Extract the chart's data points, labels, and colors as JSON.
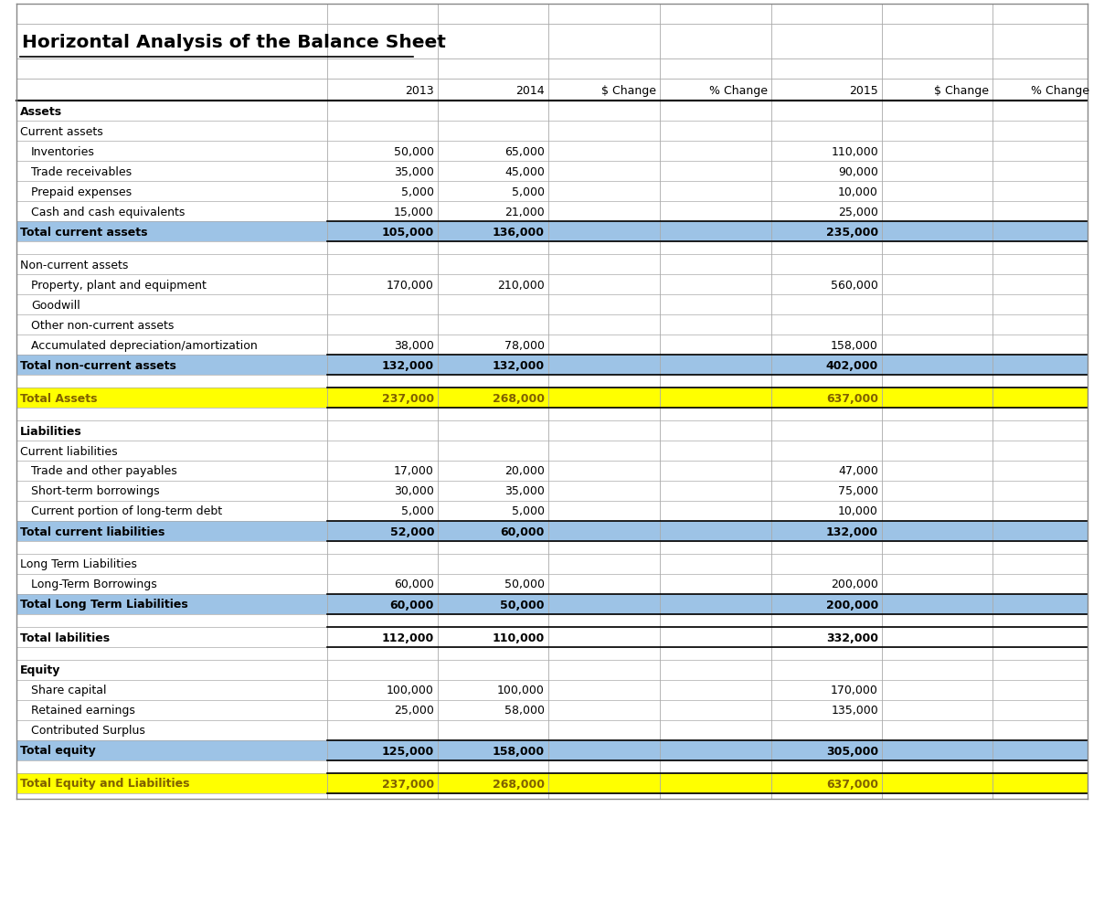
{
  "title": "Horizontal Analysis of the Balance Sheet",
  "col_headers": [
    "",
    "2013",
    "2014",
    "$ Change",
    "% Change",
    "2015",
    "$ Change",
    "% Change"
  ],
  "rows": [
    {
      "label": "Assets",
      "bold": true,
      "values": [
        "",
        "",
        "",
        "",
        "",
        "",
        ""
      ],
      "style": "header"
    },
    {
      "label": "Current assets",
      "bold": false,
      "values": [
        "",
        "",
        "",
        "",
        "",
        "",
        ""
      ],
      "style": "normal"
    },
    {
      "label": "  Inventories",
      "bold": false,
      "values": [
        "50,000",
        "65,000",
        "",
        "",
        "110,000",
        "",
        ""
      ],
      "style": "normal"
    },
    {
      "label": "  Trade receivables",
      "bold": false,
      "values": [
        "35,000",
        "45,000",
        "",
        "",
        "90,000",
        "",
        ""
      ],
      "style": "normal"
    },
    {
      "label": "  Prepaid expenses",
      "bold": false,
      "values": [
        "5,000",
        "5,000",
        "",
        "",
        "10,000",
        "",
        ""
      ],
      "style": "normal"
    },
    {
      "label": "  Cash and cash equivalents",
      "bold": false,
      "values": [
        "15,000",
        "21,000",
        "",
        "",
        "25,000",
        "",
        ""
      ],
      "style": "normal"
    },
    {
      "label": "Total current assets",
      "bold": true,
      "values": [
        "105,000",
        "136,000",
        "",
        "",
        "235,000",
        "",
        ""
      ],
      "style": "blue"
    },
    {
      "label": "",
      "bold": false,
      "values": [
        "",
        "",
        "",
        "",
        "",
        "",
        ""
      ],
      "style": "empty"
    },
    {
      "label": "Non-current assets",
      "bold": false,
      "values": [
        "",
        "",
        "",
        "",
        "",
        "",
        ""
      ],
      "style": "normal"
    },
    {
      "label": "  Property, plant and equipment",
      "bold": false,
      "values": [
        "170,000",
        "210,000",
        "",
        "",
        "560,000",
        "",
        ""
      ],
      "style": "normal"
    },
    {
      "label": "  Goodwill",
      "bold": false,
      "values": [
        "",
        "",
        "",
        "",
        "",
        "",
        ""
      ],
      "style": "normal"
    },
    {
      "label": "  Other non-current assets",
      "bold": false,
      "values": [
        "",
        "",
        "",
        "",
        "",
        "",
        ""
      ],
      "style": "normal"
    },
    {
      "label": "  Accumulated depreciation/amortization",
      "bold": false,
      "values": [
        "38,000",
        "78,000",
        "",
        "",
        "158,000",
        "",
        ""
      ],
      "style": "normal"
    },
    {
      "label": "Total non-current assets",
      "bold": true,
      "values": [
        "132,000",
        "132,000",
        "",
        "",
        "402,000",
        "",
        ""
      ],
      "style": "blue"
    },
    {
      "label": "",
      "bold": false,
      "values": [
        "",
        "",
        "",
        "",
        "",
        "",
        ""
      ],
      "style": "empty"
    },
    {
      "label": "Total Assets",
      "bold": true,
      "values": [
        "237,000",
        "268,000",
        "",
        "",
        "637,000",
        "",
        ""
      ],
      "style": "yellow"
    },
    {
      "label": "",
      "bold": false,
      "values": [
        "",
        "",
        "",
        "",
        "",
        "",
        ""
      ],
      "style": "empty"
    },
    {
      "label": "Liabilities",
      "bold": true,
      "values": [
        "",
        "",
        "",
        "",
        "",
        "",
        ""
      ],
      "style": "header"
    },
    {
      "label": "Current liabilities",
      "bold": false,
      "values": [
        "",
        "",
        "",
        "",
        "",
        "",
        ""
      ],
      "style": "normal"
    },
    {
      "label": "  Trade and other payables",
      "bold": false,
      "values": [
        "17,000",
        "20,000",
        "",
        "",
        "47,000",
        "",
        ""
      ],
      "style": "normal"
    },
    {
      "label": "  Short-term borrowings",
      "bold": false,
      "values": [
        "30,000",
        "35,000",
        "",
        "",
        "75,000",
        "",
        ""
      ],
      "style": "normal"
    },
    {
      "label": "  Current portion of long-term debt",
      "bold": false,
      "values": [
        "5,000",
        "5,000",
        "",
        "",
        "10,000",
        "",
        ""
      ],
      "style": "normal"
    },
    {
      "label": "Total current liabilities",
      "bold": true,
      "values": [
        "52,000",
        "60,000",
        "",
        "",
        "132,000",
        "",
        ""
      ],
      "style": "blue"
    },
    {
      "label": "",
      "bold": false,
      "values": [
        "",
        "",
        "",
        "",
        "",
        "",
        ""
      ],
      "style": "empty"
    },
    {
      "label": "Long Term Liabilities",
      "bold": false,
      "values": [
        "",
        "",
        "",
        "",
        "",
        "",
        ""
      ],
      "style": "normal"
    },
    {
      "label": "  Long-Term Borrowings",
      "bold": false,
      "values": [
        "60,000",
        "50,000",
        "",
        "",
        "200,000",
        "",
        ""
      ],
      "style": "normal"
    },
    {
      "label": "Total Long Term Liabilities",
      "bold": true,
      "values": [
        "60,000",
        "50,000",
        "",
        "",
        "200,000",
        "",
        ""
      ],
      "style": "blue"
    },
    {
      "label": "",
      "bold": false,
      "values": [
        "",
        "",
        "",
        "",
        "",
        "",
        ""
      ],
      "style": "empty"
    },
    {
      "label": "Total labilities",
      "bold": true,
      "values": [
        "112,000",
        "110,000",
        "",
        "",
        "332,000",
        "",
        ""
      ],
      "style": "bold_normal"
    },
    {
      "label": "",
      "bold": false,
      "values": [
        "",
        "",
        "",
        "",
        "",
        "",
        ""
      ],
      "style": "empty"
    },
    {
      "label": "Equity",
      "bold": true,
      "values": [
        "",
        "",
        "",
        "",
        "",
        "",
        ""
      ],
      "style": "header"
    },
    {
      "label": "  Share capital",
      "bold": false,
      "values": [
        "100,000",
        "100,000",
        "",
        "",
        "170,000",
        "",
        ""
      ],
      "style": "normal"
    },
    {
      "label": "  Retained earnings",
      "bold": false,
      "values": [
        "25,000",
        "58,000",
        "",
        "",
        "135,000",
        "",
        ""
      ],
      "style": "normal"
    },
    {
      "label": "  Contributed Surplus",
      "bold": false,
      "values": [
        "",
        "",
        "",
        "",
        "",
        "",
        ""
      ],
      "style": "normal"
    },
    {
      "label": "Total equity",
      "bold": true,
      "values": [
        "125,000",
        "158,000",
        "",
        "",
        "305,000",
        "",
        ""
      ],
      "style": "blue"
    },
    {
      "label": "",
      "bold": false,
      "values": [
        "",
        "",
        "",
        "",
        "",
        "",
        ""
      ],
      "style": "empty"
    },
    {
      "label": "Total Equity and Liabilities",
      "bold": true,
      "values": [
        "237,000",
        "268,000",
        "",
        "",
        "637,000",
        "",
        ""
      ],
      "style": "yellow"
    }
  ],
  "colors": {
    "blue_bg": "#9DC3E6",
    "yellow_bg": "#FFFF00",
    "white_bg": "#FFFFFF",
    "grid_line": "#AAAAAA",
    "dark_border": "#000000",
    "outer_border": "#888888"
  },
  "figsize": [
    12.08,
    10.12
  ],
  "dpi": 100
}
